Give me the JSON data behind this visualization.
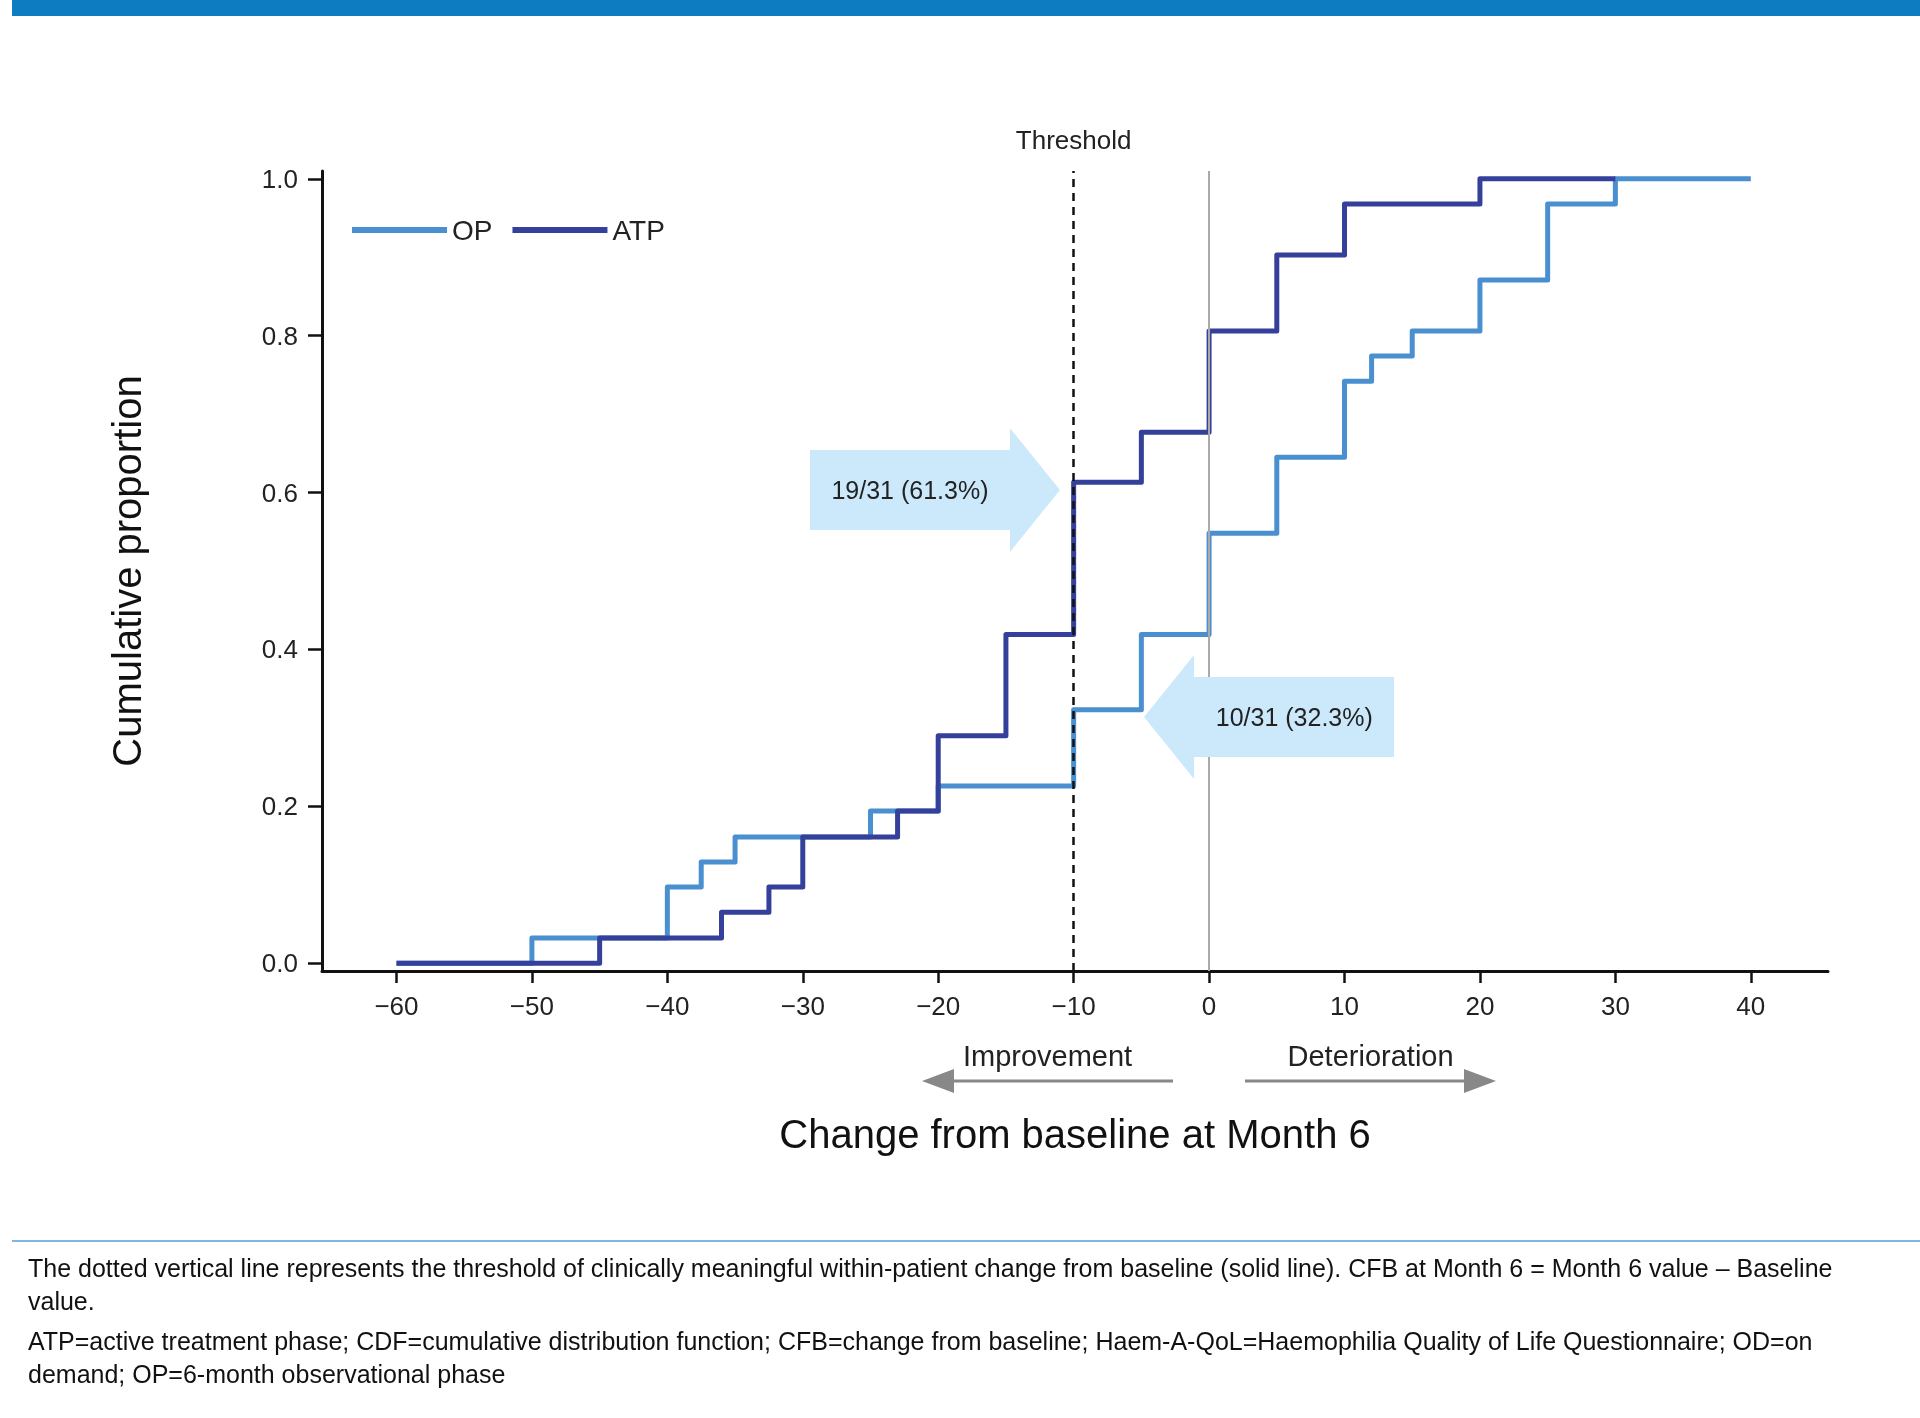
{
  "chart_data": {
    "type": "step",
    "xlabel": "Change from baseline at Month 6",
    "ylabel": "Cumulative proportion",
    "series": [
      {
        "name": "OP",
        "color": "#4a8fcf",
        "x": [
          -60,
          -50,
          -40,
          -37.5,
          -35,
          -25,
          -20,
          -10,
          -5,
          0,
          5,
          10,
          12,
          15,
          20,
          25,
          30,
          40
        ],
        "values": [
          0,
          0.032,
          0.097,
          0.129,
          0.161,
          0.194,
          0.226,
          0.323,
          0.419,
          0.548,
          0.645,
          0.742,
          0.774,
          0.806,
          0.871,
          0.968,
          1.0,
          1.0
        ]
      },
      {
        "name": "ATP",
        "color": "#34409a",
        "x": [
          -60,
          -45,
          -36,
          -32.5,
          -30,
          -23,
          -20,
          -15,
          -10,
          -5,
          0,
          5,
          10,
          20,
          30
        ],
        "values": [
          0,
          0.032,
          0.065,
          0.097,
          0.161,
          0.194,
          0.29,
          0.419,
          0.613,
          0.677,
          0.806,
          0.903,
          0.968,
          1.0,
          1.0
        ]
      }
    ],
    "xlim": [
      -65.5,
      45.7
    ],
    "ylim": [
      -0.01,
      1.01
    ],
    "xticks": [
      {
        "value": -60,
        "label": "−60"
      },
      {
        "value": -50,
        "label": "−50"
      },
      {
        "value": -40,
        "label": "−40"
      },
      {
        "value": -30,
        "label": "−30"
      },
      {
        "value": -20,
        "label": "−20"
      },
      {
        "value": -10,
        "label": "−10"
      },
      0,
      10,
      20,
      30,
      40
    ],
    "yticks": [
      {
        "value": 0,
        "label": "0.0"
      },
      {
        "value": 0.2,
        "label": "0.2"
      },
      {
        "value": 0.4,
        "label": "0.4"
      },
      {
        "value": 0.6,
        "label": "0.6"
      },
      {
        "value": 0.8,
        "label": "0.8"
      },
      {
        "value": 1,
        "label": "1.0"
      }
    ],
    "ref_lines": [
      {
        "axis": "x",
        "value": -10,
        "label": "Threshold",
        "color": "#111111",
        "line_style": "dashed"
      },
      {
        "axis": "x",
        "value": 0,
        "label": null,
        "color": "#aaaaaa",
        "line_style": "solid"
      }
    ],
    "annotations": [
      "19/31 (61.3%)",
      "10/31 (32.3%)",
      "Improvement",
      "Deterioration",
      "The dotted vertical line represents the threshold of clinically meaningful within-patient change from baseline (solid line). CFB at Month 6 = Month 6 value – Baseline value.",
      "ATP=active treatment phase; CDF=cumulative distribution function; CFB=change from baseline; Haem-A-QoL=Haemophilia Quality of Life Questionnaire; OD=on demand; OP=6-month observational phase"
    ],
    "legend": "top left",
    "grid": false,
    "marker": "none",
    "line_style": "solid"
  }
}
